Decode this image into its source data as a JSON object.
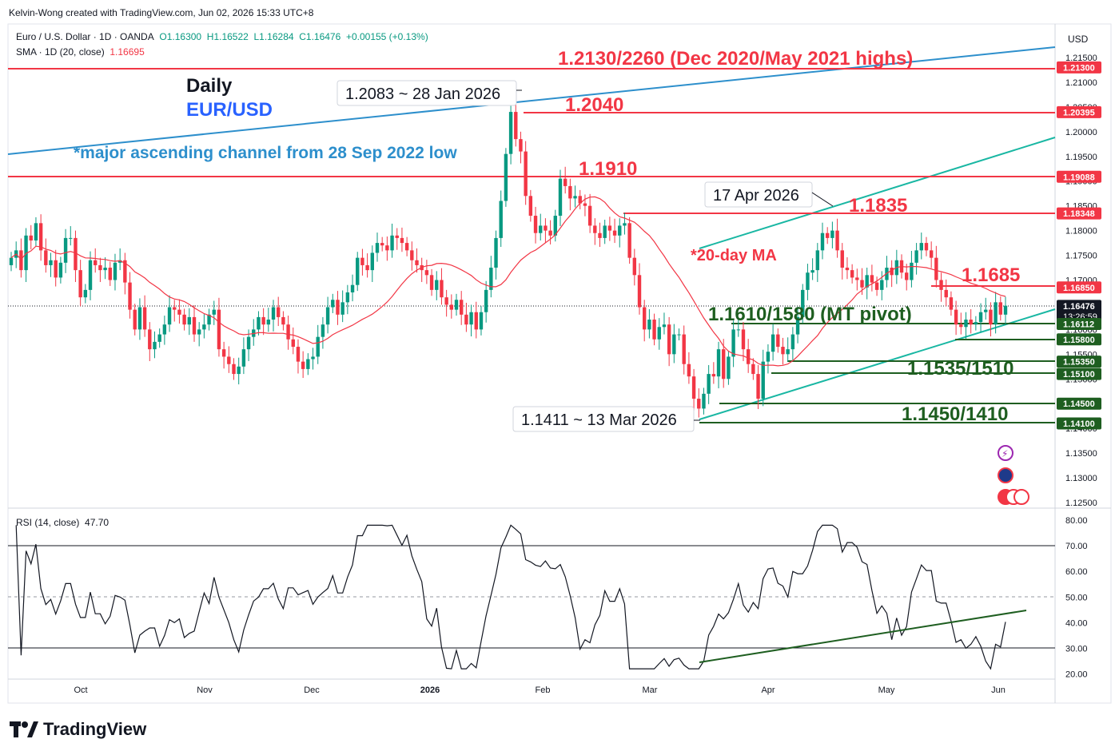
{
  "header": {
    "credit": "Kelvin-Wong created with TradingView.com, Jun 02, 2026 15:33 UTC+8"
  },
  "legend": {
    "symbol": "Euro / U.S. Dollar · 1D · OANDA",
    "open": "O1.16300",
    "high": "H1.16522",
    "low": "L1.16284",
    "close": "C1.16476",
    "change": "+0.00155 (+0.13%)",
    "sma_label": "SMA · 1D (20, close)",
    "sma_value": "1.16695",
    "rsi_label": "RSI (14, close)",
    "rsi_value": "47.70"
  },
  "price_axis": {
    "currency": "USD",
    "ticks": [
      "1.21500",
      "1.21000",
      "1.20500",
      "1.20000",
      "1.19500",
      "1.19000",
      "1.18500",
      "1.18000",
      "1.17500",
      "1.17000",
      "1.16500",
      "1.16000",
      "1.15500",
      "1.15000",
      "1.14500",
      "1.14000",
      "1.13500",
      "1.13000",
      "1.12500"
    ],
    "badges": [
      {
        "text": "1.21300",
        "value": 1.213,
        "color": "#f23645"
      },
      {
        "text": "1.20395",
        "value": 1.20395,
        "color": "#f23645"
      },
      {
        "text": "1.19088",
        "value": 1.19088,
        "color": "#f23645"
      },
      {
        "text": "1.18348",
        "value": 1.18348,
        "color": "#f23645"
      },
      {
        "text": "1.16850",
        "value": 1.1685,
        "color": "#f23645"
      },
      {
        "text": "1.16476",
        "value": 1.16476,
        "color": "#131722"
      },
      {
        "text": "1.16112",
        "value": 1.16112,
        "color": "#1e5e20"
      },
      {
        "text": "1.15800",
        "value": 1.158,
        "color": "#1e5e20"
      },
      {
        "text": "1.15350",
        "value": 1.1535,
        "color": "#1e5e20"
      },
      {
        "text": "1.15100",
        "value": 1.151,
        "color": "#1e5e20"
      },
      {
        "text": "1.14500",
        "value": 1.145,
        "color": "#1e5e20"
      },
      {
        "text": "1.14100",
        "value": 1.141,
        "color": "#1e5e20"
      }
    ],
    "countdown": "13:26:59"
  },
  "rsi_axis": {
    "ticks": [
      "80.00",
      "70.00",
      "60.00",
      "50.00",
      "40.00",
      "30.00",
      "20.00"
    ]
  },
  "time_axis": [
    "Oct",
    "Nov",
    "Dec",
    "2026",
    "Feb",
    "Mar",
    "Apr",
    "May",
    "Jun"
  ],
  "annotations": {
    "title1": "Daily",
    "title2": "EUR/USD",
    "channel": "*major ascending channel from 28 Sep 2022 low",
    "ma_note": "*20-day MA",
    "high_callout": "1.2083 ~ 28 Jan 2026",
    "apr_callout": "17 Apr 2026",
    "low_callout": "1.1411 ~ 13 Mar 2026",
    "res_2130": "1.2130/2260 (Dec 2020/May 2021 highs)",
    "res_2040": "1.2040",
    "res_1910": "1.1910",
    "res_1835": "1.1835",
    "res_1685": "1.1685",
    "sup_1610": "1.1610/1580 (MT pivot)",
    "sup_1535": "1.1535/1510",
    "sup_1450": "1.1450/1410"
  },
  "colors": {
    "up": "#089981",
    "down": "#f23645",
    "sma": "#f23645",
    "resistance": "#f23645",
    "support": "#1e5e20",
    "channel_outer": "#2d8fcc",
    "channel_inner": "#19b7a3"
  },
  "chart_data": [
    {
      "type": "candlestick",
      "series_name": "EUR/USD",
      "period": "Sep 2025 - Jun 2026 (approx. daily closes)",
      "close": [
        1.1745,
        1.176,
        1.172,
        1.179,
        1.178,
        1.1815,
        1.176,
        1.173,
        1.174,
        1.1705,
        1.1735,
        1.1785,
        1.1785,
        1.172,
        1.1665,
        1.168,
        1.174,
        1.173,
        1.172,
        1.1725,
        1.17,
        1.1735,
        1.174,
        1.1695,
        1.164,
        1.16,
        1.1645,
        1.16,
        1.156,
        1.1575,
        1.159,
        1.161,
        1.1645,
        1.164,
        1.163,
        1.161,
        1.1625,
        1.159,
        1.16,
        1.161,
        1.163,
        1.164,
        1.156,
        1.1545,
        1.153,
        1.151,
        1.1525,
        1.156,
        1.1585,
        1.16,
        1.1625,
        1.161,
        1.162,
        1.1645,
        1.1625,
        1.161,
        1.158,
        1.1565,
        1.1535,
        1.152,
        1.154,
        1.1545,
        1.1585,
        1.161,
        1.1645,
        1.166,
        1.163,
        1.1655,
        1.1675,
        1.169,
        1.1745,
        1.173,
        1.172,
        1.1755,
        1.1775,
        1.177,
        1.176,
        1.179,
        1.1785,
        1.1775,
        1.176,
        1.174,
        1.173,
        1.172,
        1.171,
        1.168,
        1.17,
        1.1665,
        1.165,
        1.164,
        1.166,
        1.163,
        1.161,
        1.1635,
        1.16,
        1.1635,
        1.168,
        1.1725,
        1.1785,
        1.186,
        1.1955,
        1.204,
        1.1985,
        1.196,
        1.187,
        1.183,
        1.1795,
        1.181,
        1.18,
        1.179,
        1.183,
        1.1905,
        1.189,
        1.1865,
        1.187,
        1.1855,
        1.185,
        1.181,
        1.1795,
        1.1785,
        1.181,
        1.18,
        1.179,
        1.181,
        1.1815,
        1.1745,
        1.171,
        1.1645,
        1.16,
        1.162,
        1.158,
        1.1605,
        1.161,
        1.155,
        1.159,
        1.159,
        1.153,
        1.1505,
        1.146,
        1.144,
        1.147,
        1.151,
        1.1505,
        1.156,
        1.15,
        1.1545,
        1.16,
        1.16,
        1.156,
        1.153,
        1.151,
        1.146,
        1.1535,
        1.1555,
        1.159,
        1.1565,
        1.155,
        1.156,
        1.159,
        1.1625,
        1.168,
        1.1715,
        1.172,
        1.176,
        1.1795,
        1.1785,
        1.18,
        1.176,
        1.1725,
        1.172,
        1.1705,
        1.17,
        1.1685,
        1.171,
        1.1695,
        1.168,
        1.17,
        1.1725,
        1.171,
        1.174,
        1.1715,
        1.17,
        1.1735,
        1.176,
        1.1775,
        1.176,
        1.1745,
        1.17,
        1.168,
        1.1665,
        1.164,
        1.161,
        1.1605,
        1.162,
        1.161,
        1.1615,
        1.1635,
        1.164,
        1.161,
        1.1655,
        1.163,
        1.1648
      ],
      "sma20_end": 1.16695,
      "ylim": [
        1.124,
        1.218
      ]
    },
    {
      "type": "line",
      "series_name": "RSI (14, close)",
      "last": 47.7,
      "ylim": [
        17,
        82
      ],
      "levels": [
        70,
        50,
        30
      ]
    }
  ]
}
